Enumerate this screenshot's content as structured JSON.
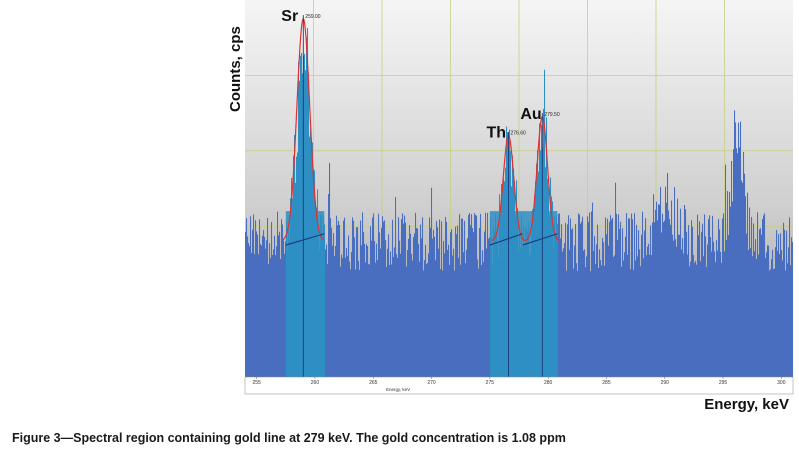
{
  "chart_data": {
    "type": "bar",
    "xlabel": "Energy, keV",
    "inner_xlabel": "Energy, keV",
    "ylabel": "Counts, cps",
    "xlim": [
      254,
      301
    ],
    "ylim": [
      0,
      100
    ],
    "x_ticks": [
      255,
      260,
      265,
      270,
      275,
      280,
      285,
      290,
      295,
      300
    ],
    "grid": true,
    "colors": {
      "spectrum": "#4a6ebf",
      "roi": "#2e8fc4",
      "fit": "#e03030",
      "baseline": "#1a3a7a",
      "background_top": "#f4f4f4",
      "background_bottom": "#9a9a9a",
      "gridline": "#c8d080"
    },
    "background_level": 36,
    "peaks": [
      {
        "label": "Sr",
        "centroid": 259.0,
        "centroid_label": "259.00",
        "height": 95,
        "sigma": 0.55,
        "roi": [
          257.5,
          260.8
        ]
      },
      {
        "label": "Th",
        "centroid": 276.6,
        "centroid_label": "276.60",
        "height": 64,
        "sigma": 0.45,
        "roi": [
          275.0,
          277.8
        ]
      },
      {
        "label": "Au",
        "centroid": 279.5,
        "centroid_label": "279.50",
        "height": 69,
        "sigma": 0.45,
        "roi": [
          277.8,
          280.8
        ]
      }
    ],
    "other_peaks": [
      {
        "center": 290.0,
        "height": 47,
        "sigma": 0.9
      },
      {
        "center": 296.2,
        "height": 67,
        "sigma": 0.5
      }
    ]
  },
  "caption": "Figure 3—Spectral region containing gold line at 279 keV. The gold concentration is 1.08 ppm"
}
